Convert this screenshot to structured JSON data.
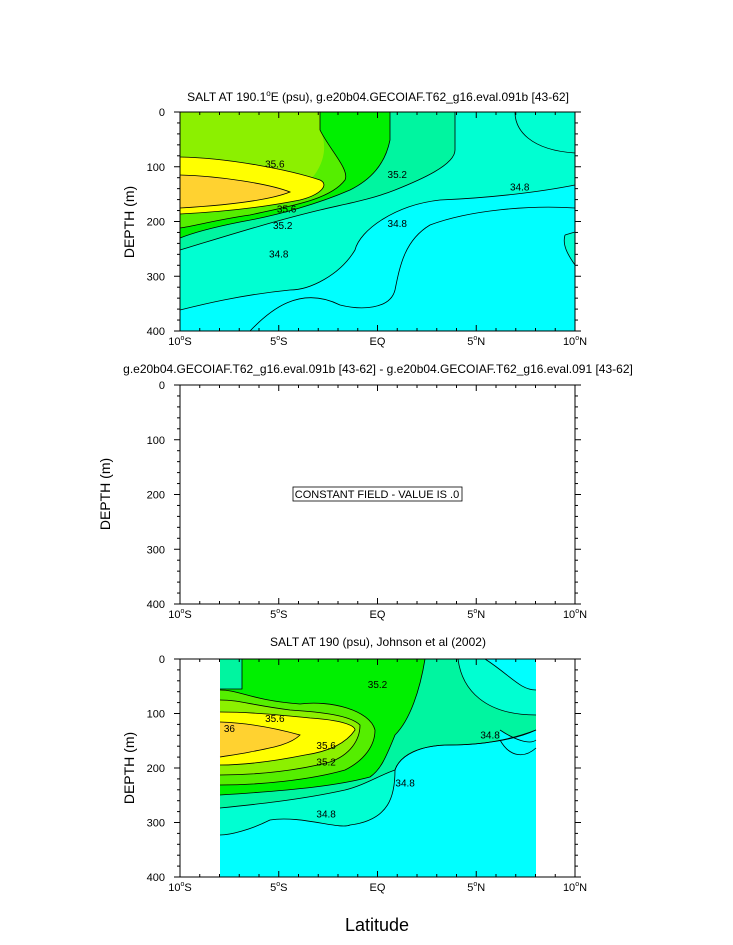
{
  "chart_data": [
    {
      "type": "heatmap",
      "title": "SALT AT 190.1°E (psu), g.e20b04.GECOIAF.T62_g16.eval.091b [43-62]",
      "title_parts": {
        "pre": "SALT AT 190.1",
        "sup": "o",
        "post": "E (psu), g.e20b04.GECOIAF.T62_g16.eval.091b [43-62]"
      },
      "ylabel": "DEPTH (m)",
      "xlabel": "",
      "xlim": [
        -10,
        10
      ],
      "ylim": [
        400,
        0
      ],
      "yticks": [
        "0",
        "100",
        "200",
        "300",
        "400"
      ],
      "contour_labels": [
        {
          "text": "35.6",
          "x": -5.2,
          "y": 96
        },
        {
          "text": "35.2",
          "x": 1.0,
          "y": 115
        },
        {
          "text": "34.8",
          "x": 7.2,
          "y": 138
        },
        {
          "text": "35.6",
          "x": -4.6,
          "y": 178
        },
        {
          "text": "35.2",
          "x": -4.8,
          "y": 208
        },
        {
          "text": "34.8",
          "x": 1.0,
          "y": 205
        },
        {
          "text": "34.8",
          "x": -5.0,
          "y": 260
        }
      ]
    },
    {
      "type": "heatmap",
      "title": "g.e20b04.GECOIAF.T62_g16.eval.091b [43-62] - g.e20b04.GECOIAF.T62_g16.eval.091 [43-62]",
      "ylabel": "DEPTH (m)",
      "xlabel": "",
      "xlim": [
        -10,
        10
      ],
      "ylim": [
        400,
        0
      ],
      "yticks": [
        "0",
        "100",
        "200",
        "300",
        "400"
      ],
      "annotation": "CONSTANT FIELD - VALUE IS .0"
    },
    {
      "type": "heatmap",
      "title": "SALT AT 190 (psu), Johnson et al (2002)",
      "ylabel": "DEPTH (m)",
      "xlabel": "Latitude",
      "xlim": [
        -10,
        10
      ],
      "ylim": [
        400,
        0
      ],
      "data_extent_lat": [
        -8,
        8
      ],
      "yticks": [
        "0",
        "100",
        "200",
        "300",
        "400"
      ],
      "contour_labels": [
        {
          "text": "35.2",
          "x": 0.0,
          "y": 48
        },
        {
          "text": "35.6",
          "x": -5.2,
          "y": 110
        },
        {
          "text": "36",
          "x": -7.5,
          "y": 128
        },
        {
          "text": "35.6",
          "x": -2.6,
          "y": 160
        },
        {
          "text": "35.2",
          "x": -2.6,
          "y": 190
        },
        {
          "text": "34.8",
          "x": 5.7,
          "y": 140
        },
        {
          "text": "34.8",
          "x": 1.4,
          "y": 228
        },
        {
          "text": "34.8",
          "x": -2.6,
          "y": 285
        }
      ]
    }
  ],
  "xticks": [
    {
      "pre": "10",
      "sup": "o",
      "post": "S"
    },
    {
      "pre": "5",
      "sup": "o",
      "post": "S"
    },
    {
      "pre": "EQ",
      "sup": "",
      "post": ""
    },
    {
      "pre": "5",
      "sup": "o",
      "post": "N"
    },
    {
      "pre": "10",
      "sup": "o",
      "post": "N"
    }
  ],
  "colors": {
    "s_lt_34_6": "#00FFFF",
    "s_34_8": "#00FFD2",
    "s_35_0": "#00F5A0",
    "s_35_2": "#00F000",
    "s_35_4": "#55EE00",
    "s_35_6": "#8CF000",
    "s_35_8": "#FFFF00",
    "s_36_0": "#FFD230",
    "s_36_2": "#FFB428"
  }
}
